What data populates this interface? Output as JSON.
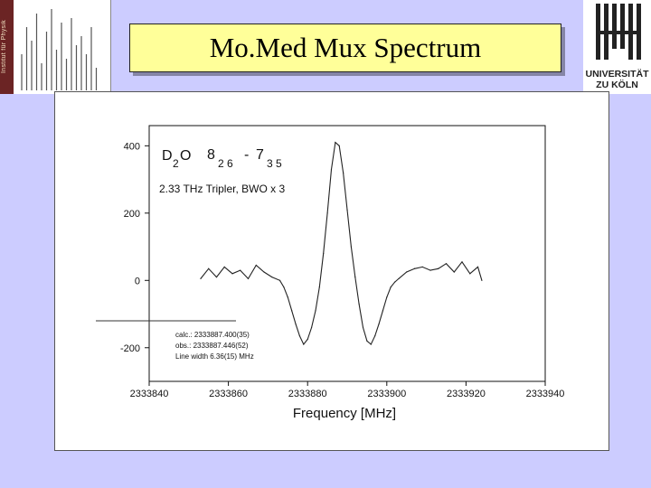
{
  "slide": {
    "title": "Mo.Med Mux Spectrum",
    "logo_left_text": "Institut für Physik"
  },
  "logo_right": {
    "line1": "UNIVERSITÄT",
    "line2": "ZU KÖLN"
  },
  "chart_data": {
    "type": "line",
    "x_tick_labels": [
      "2333840",
      "2333860",
      "2333880",
      "2333900",
      "2333920",
      "2333940"
    ],
    "y_tick_labels": [
      "400",
      "200",
      "0",
      "-200"
    ],
    "x_ticks": [
      2333840,
      2333860,
      2333880,
      2333900,
      2333920,
      2333940
    ],
    "y_ticks": [
      400,
      200,
      0,
      -200
    ],
    "xlabel": "Frequency [MHz]",
    "ylabel": "",
    "xlim": [
      2333840,
      2333940
    ],
    "ylim": [
      -300,
      460
    ],
    "annotations": {
      "molecule": "D",
      "molecule_sub": "2",
      "molecule_tail": "O",
      "transition_upper": "8",
      "transition_upper_sub": "2 6",
      "dash": "-",
      "transition_lower": "7",
      "transition_lower_sub": "3 5",
      "setup": "2.33 THz Tripler, BWO x 3",
      "calc": "calc.: 2333887.400(35)",
      "obs": "obs.: 2333887.446(52)",
      "linewidth": "Line width 6.36(15) MHz"
    },
    "series": [
      {
        "x": [
          2333853,
          2333855,
          2333857,
          2333859,
          2333861,
          2333863,
          2333865,
          2333867,
          2333869,
          2333871,
          2333873,
          2333874,
          2333875,
          2333876,
          2333877,
          2333878,
          2333879,
          2333880,
          2333881,
          2333882,
          2333883,
          2333884,
          2333885,
          2333886,
          2333887,
          2333888,
          2333889,
          2333890,
          2333891,
          2333892,
          2333893,
          2333894,
          2333895,
          2333896,
          2333897,
          2333898,
          2333899,
          2333900,
          2333901,
          2333902,
          2333903,
          2333905,
          2333907,
          2333909,
          2333911,
          2333913,
          2333915,
          2333917,
          2333919,
          2333921,
          2333923,
          2333924
        ],
        "y": [
          5,
          35,
          10,
          40,
          20,
          30,
          5,
          45,
          25,
          10,
          0,
          -20,
          -50,
          -90,
          -130,
          -165,
          -190,
          -175,
          -140,
          -90,
          -20,
          80,
          200,
          330,
          410,
          400,
          320,
          210,
          100,
          10,
          -70,
          -140,
          -180,
          -190,
          -165,
          -130,
          -90,
          -50,
          -20,
          -5,
          5,
          25,
          35,
          40,
          30,
          35,
          50,
          25,
          55,
          20,
          40,
          0
        ]
      }
    ]
  }
}
